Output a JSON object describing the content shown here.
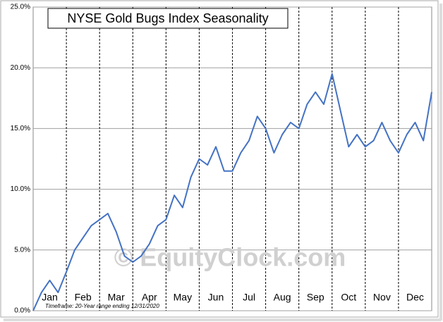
{
  "chart_data": {
    "type": "line",
    "title": "NYSE Gold Bugs Index Seasonality",
    "watermark": "© EquityClock.com",
    "footnote": "Timeframe: 20-Year range ending 12/31/2020",
    "categories": [
      null,
      null,
      "Jan",
      null,
      null,
      null,
      "Feb",
      null,
      null,
      null,
      "Mar",
      null,
      null,
      null,
      "Apr",
      null,
      null,
      null,
      "May",
      null,
      null,
      null,
      "Jun",
      null,
      null,
      null,
      "Jul",
      null,
      null,
      null,
      "Aug",
      null,
      null,
      null,
      "Sep",
      null,
      null,
      null,
      "Oct",
      null,
      null,
      null,
      "Nov",
      null,
      null,
      null,
      "Dec",
      null,
      null
    ],
    "series": [
      {
        "name": "NYSE Gold Bugs Index",
        "color": "#4472c4",
        "values": [
          0,
          1.5,
          2.5,
          1.5,
          3.2,
          5,
          6,
          7,
          7.5,
          8,
          6.5,
          4.5,
          4,
          4.5,
          5.5,
          7,
          7.5,
          9.5,
          8.5,
          11,
          12.5,
          12,
          13.5,
          11.5,
          11.5,
          13,
          14,
          16,
          15,
          13,
          14.5,
          15.5,
          15,
          17,
          18,
          17,
          19.5,
          16.5,
          13.5,
          14.5,
          13.5,
          14,
          15.5,
          14,
          13,
          14.5,
          15.5,
          14,
          18
        ]
      }
    ],
    "ylim": [
      0,
      25
    ],
    "yticks": [
      {
        "value": 0,
        "label": "0.0%"
      },
      {
        "value": 5,
        "label": "5.0%"
      },
      {
        "value": 10,
        "label": "10.0%"
      },
      {
        "value": 15,
        "label": "15.0%"
      },
      {
        "value": 20,
        "label": "20.0%"
      },
      {
        "value": 25,
        "label": "25.0%"
      }
    ],
    "grid": true
  }
}
